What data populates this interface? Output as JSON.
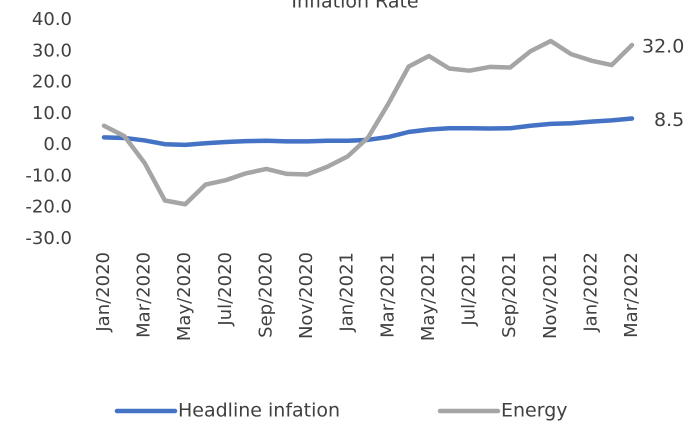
{
  "chart_data": {
    "type": "line",
    "title": "Inflation Rate",
    "categories": [
      "Jan/2020",
      null,
      "Mar/2020",
      null,
      "May/2020",
      null,
      "Jul/2020",
      null,
      "Sep/2020",
      null,
      "Nov/2020",
      null,
      "Jan/2021",
      null,
      "Mar/2021",
      null,
      "May/2021",
      null,
      "Jul/2021",
      null,
      "Sep/2021",
      null,
      "Nov/2021",
      null,
      "Jan/2022",
      null,
      "Mar/2022"
    ],
    "series": [
      {
        "name": "Headline infation",
        "color": "#4472c4",
        "values": [
          2.5,
          2.3,
          1.5,
          0.3,
          0.1,
          0.6,
          1.0,
          1.3,
          1.4,
          1.2,
          1.2,
          1.4,
          1.4,
          1.7,
          2.6,
          4.2,
          5.0,
          5.4,
          5.4,
          5.3,
          5.4,
          6.2,
          6.8,
          7.0,
          7.5,
          7.9,
          8.5
        ],
        "value_labels": [
          null,
          null,
          null,
          null,
          null,
          null,
          null,
          null,
          null,
          null,
          null,
          null,
          null,
          null,
          null,
          null,
          null,
          null,
          null,
          null,
          null,
          null,
          null,
          null,
          null,
          null,
          "8.5"
        ]
      },
      {
        "name": "Energy",
        "color": "#a5a5a5",
        "values": [
          6.2,
          2.9,
          -5.7,
          -17.7,
          -18.9,
          -12.6,
          -11.2,
          -9.0,
          -7.6,
          -9.2,
          -9.4,
          -6.9,
          -3.6,
          2.4,
          13.2,
          25.1,
          28.5,
          24.5,
          23.8,
          25.0,
          24.8,
          30.0,
          33.3,
          29.1,
          27.0,
          25.6,
          32.0
        ],
        "value_labels": [
          null,
          null,
          null,
          null,
          null,
          null,
          null,
          null,
          null,
          null,
          null,
          null,
          null,
          null,
          null,
          null,
          null,
          null,
          null,
          null,
          null,
          null,
          null,
          null,
          null,
          null,
          "32.0"
        ]
      }
    ],
    "ylim": [
      -30,
      40
    ],
    "yticks": [
      {
        "value": -30,
        "label": "-30.0"
      },
      {
        "value": -20,
        "label": "-20.0"
      },
      {
        "value": -10,
        "label": "-10.0"
      },
      {
        "value": 0,
        "label": "0.0"
      },
      {
        "value": 10,
        "label": "10.0"
      },
      {
        "value": 20,
        "label": "20.0"
      },
      {
        "value": 30,
        "label": "30.0"
      },
      {
        "value": 40,
        "label": "40.0"
      }
    ],
    "grid": false,
    "legend": "bottom"
  }
}
